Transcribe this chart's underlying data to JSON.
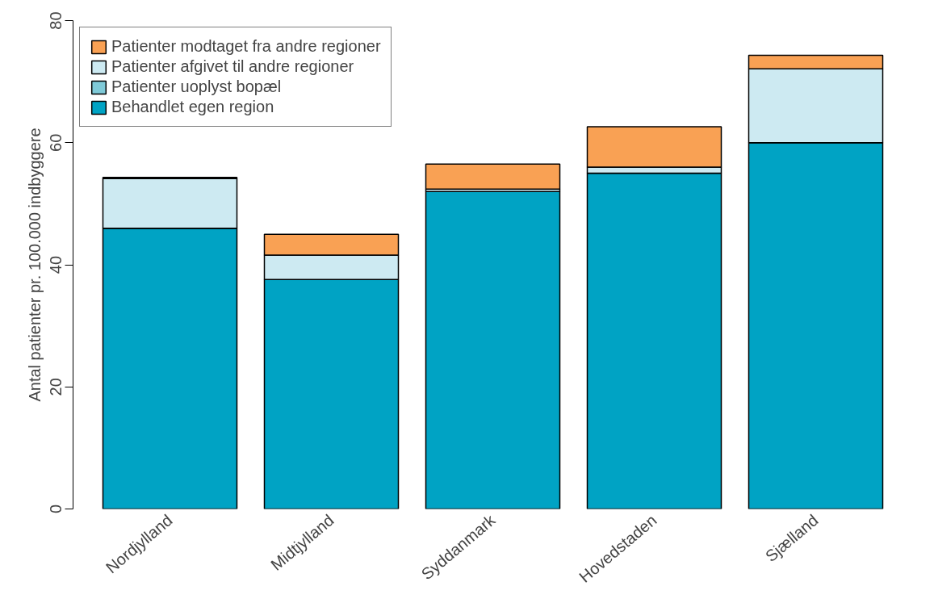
{
  "chart_data": {
    "type": "bar",
    "stacked": true,
    "ylabel": "Antal patienter pr. 100.000 indbyggere",
    "categories": [
      "Nordjylland",
      "Midtjylland",
      "Syddanmark",
      "Hovedstaden",
      "Sjælland"
    ],
    "series": [
      {
        "name": "Behandlet egen region",
        "color": "#00a3c4",
        "values": [
          46.0,
          37.6,
          52.0,
          55.0,
          60.0
        ]
      },
      {
        "name": "Patienter uoplyst bopæl",
        "color": "#7fcad8",
        "values": [
          0,
          0,
          0,
          0,
          0
        ]
      },
      {
        "name": "Patienter afgivet til andre regioner",
        "color": "#cdeaf2",
        "values": [
          8.1,
          4.0,
          0.4,
          1.0,
          12.1
        ]
      },
      {
        "name": "Patienter modtaget fra andre regioner",
        "color": "#f9a154",
        "values": [
          0.2,
          3.4,
          4.1,
          6.6,
          2.2
        ]
      }
    ],
    "ylim": [
      0,
      80
    ],
    "yticks": [
      0,
      20,
      40,
      60,
      80
    ],
    "grid": false,
    "legend": "top left"
  }
}
